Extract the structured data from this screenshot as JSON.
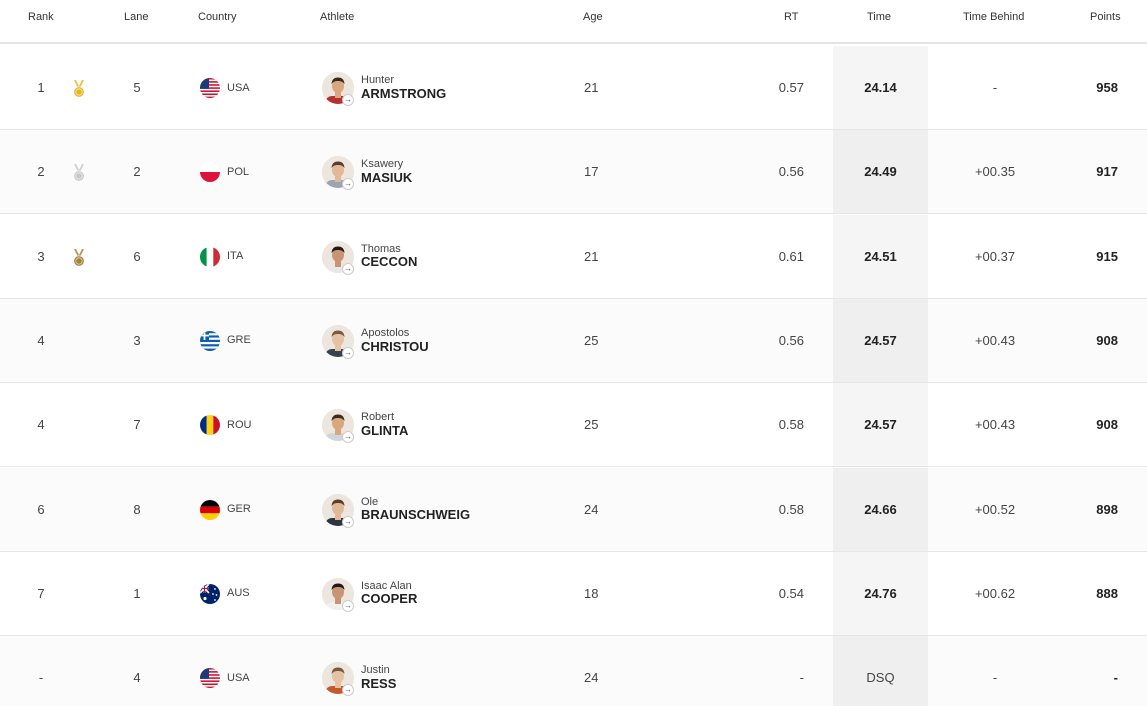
{
  "headers": {
    "rank": "Rank",
    "lane": "Lane",
    "country": "Country",
    "athlete": "Athlete",
    "age": "Age",
    "rt": "RT",
    "time": "Time",
    "behind": "Time Behind",
    "points": "Points"
  },
  "colors": {
    "gold": "#e5b624",
    "silver": "#c8c8c8",
    "bronze": "#a8823b"
  },
  "rows": [
    {
      "rank": "1",
      "medal": "gold-medal-icon",
      "lane": "5",
      "country": "USA",
      "flag": "usa-flag-icon",
      "first": "Hunter",
      "last": "ARMSTRONG",
      "age": "21",
      "rt": "0.57",
      "time": "24.14",
      "behind": "-",
      "points": "958"
    },
    {
      "rank": "2",
      "medal": "silver-medal-icon",
      "lane": "2",
      "country": "POL",
      "flag": "poland-flag-icon",
      "first": "Ksawery",
      "last": "MASIUK",
      "age": "17",
      "rt": "0.56",
      "time": "24.49",
      "behind": "+00.35",
      "points": "917"
    },
    {
      "rank": "3",
      "medal": "bronze-medal-icon",
      "lane": "6",
      "country": "ITA",
      "flag": "italy-flag-icon",
      "first": "Thomas",
      "last": "CECCON",
      "age": "21",
      "rt": "0.61",
      "time": "24.51",
      "behind": "+00.37",
      "points": "915"
    },
    {
      "rank": "4",
      "medal": "",
      "lane": "3",
      "country": "GRE",
      "flag": "greece-flag-icon",
      "first": "Apostolos",
      "last": "CHRISTOU",
      "age": "25",
      "rt": "0.56",
      "time": "24.57",
      "behind": "+00.43",
      "points": "908"
    },
    {
      "rank": "4",
      "medal": "",
      "lane": "7",
      "country": "ROU",
      "flag": "romania-flag-icon",
      "first": "Robert",
      "last": "GLINTA",
      "age": "25",
      "rt": "0.58",
      "time": "24.57",
      "behind": "+00.43",
      "points": "908"
    },
    {
      "rank": "6",
      "medal": "",
      "lane": "8",
      "country": "GER",
      "flag": "germany-flag-icon",
      "first": "Ole",
      "last": "BRAUNSCHWEIG",
      "age": "24",
      "rt": "0.58",
      "time": "24.66",
      "behind": "+00.52",
      "points": "898"
    },
    {
      "rank": "7",
      "medal": "",
      "lane": "1",
      "country": "AUS",
      "flag": "australia-flag-icon",
      "first": "Isaac Alan",
      "last": "COOPER",
      "age": "18",
      "rt": "0.54",
      "time": "24.76",
      "behind": "+00.62",
      "points": "888"
    },
    {
      "rank": "-",
      "medal": "",
      "lane": "4",
      "country": "USA",
      "flag": "usa-flag-icon",
      "first": "Justin",
      "last": "RESS",
      "age": "24",
      "rt": "-",
      "time": "DSQ",
      "behind": "-",
      "points": "-"
    }
  ]
}
